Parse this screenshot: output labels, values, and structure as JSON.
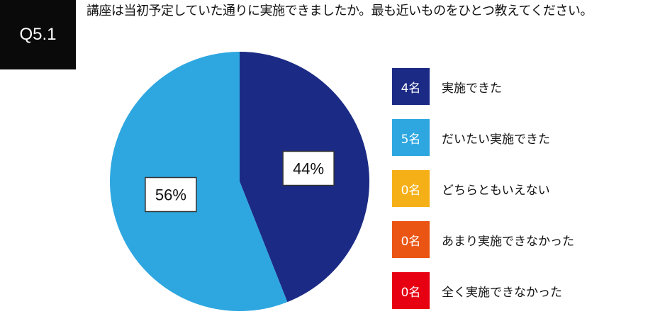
{
  "question": {
    "number": "Q5.1",
    "text": "講座は当初予定していた通りに実施できましたか。最も近いものをひとつ教えてください。"
  },
  "chart_data": {
    "type": "pie",
    "categories": [
      "実施できた",
      "だいたい実施できた",
      "どちらともいえない",
      "あまり実施できなかった",
      "全く実施できなかった"
    ],
    "counts": [
      "4名",
      "5名",
      "0名",
      "0名",
      "0名"
    ],
    "values": [
      44,
      56,
      0,
      0,
      0
    ],
    "value_labels": [
      "44%",
      "56%",
      "",
      "",
      ""
    ],
    "colors": [
      "#1b2b85",
      "#2ea7e0",
      "#f5b018",
      "#ea5514",
      "#e60012"
    ],
    "legend_position": "right"
  }
}
